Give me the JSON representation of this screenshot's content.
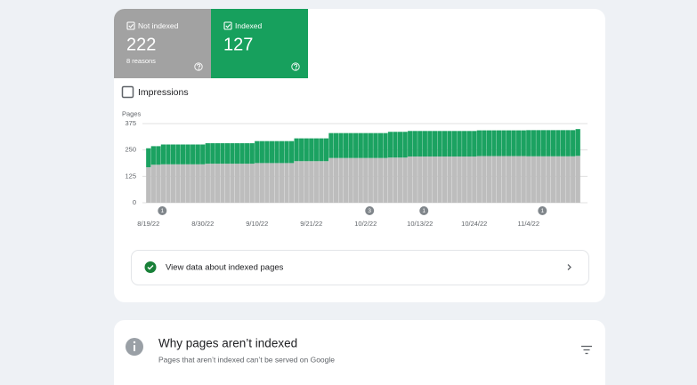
{
  "tiles": {
    "not_indexed": {
      "label": "Not indexed",
      "value": 222,
      "sub": "8 reasons"
    },
    "indexed": {
      "label": "Indexed",
      "value": 127
    }
  },
  "impressions_label": "Impressions",
  "chart_data": {
    "type": "bar",
    "stacked": true,
    "y_label": "Pages",
    "categories": [
      "8/19/22",
      null,
      null,
      null,
      null,
      null,
      null,
      null,
      null,
      null,
      null,
      "8/30/22",
      null,
      null,
      null,
      null,
      null,
      null,
      null,
      null,
      null,
      null,
      "9/10/22",
      null,
      null,
      null,
      null,
      null,
      null,
      null,
      null,
      null,
      null,
      "9/21/22",
      null,
      null,
      null,
      null,
      null,
      null,
      null,
      null,
      null,
      null,
      "10/2/22",
      null,
      null,
      null,
      null,
      null,
      null,
      null,
      null,
      null,
      null,
      "10/13/22",
      null,
      null,
      null,
      null,
      null,
      null,
      null,
      null,
      null,
      null,
      "10/24/22",
      null,
      null,
      null,
      null,
      null,
      null,
      null,
      null,
      null,
      null,
      "11/4/22",
      null,
      null,
      null,
      null,
      null,
      null,
      null,
      null,
      null,
      null
    ],
    "series": [
      {
        "color": "#bdbdbd",
        "values": [
          168,
          180,
          180,
          182,
          182,
          182,
          182,
          182,
          182,
          182,
          182,
          182,
          185,
          185,
          185,
          185,
          185,
          185,
          185,
          185,
          185,
          185,
          188,
          188,
          188,
          188,
          188,
          188,
          188,
          188,
          197,
          197,
          197,
          197,
          197,
          197,
          197,
          212,
          212,
          212,
          212,
          212,
          212,
          212,
          212,
          212,
          212,
          212,
          212,
          214,
          214,
          214,
          214,
          219,
          219,
          219,
          219,
          219,
          219,
          219,
          219,
          219,
          219,
          219,
          219,
          219,
          219,
          221,
          221,
          221,
          221,
          221,
          221,
          221,
          221,
          221,
          221,
          220,
          220,
          220,
          220,
          220,
          220,
          220,
          220,
          220,
          220,
          222
        ]
      },
      {
        "color": "#1ba261",
        "values": [
          90,
          88,
          88,
          94,
          94,
          94,
          94,
          94,
          94,
          94,
          94,
          94,
          97,
          97,
          97,
          97,
          97,
          97,
          97,
          97,
          97,
          97,
          104,
          104,
          104,
          104,
          104,
          104,
          104,
          104,
          108,
          108,
          108,
          108,
          108,
          108,
          108,
          118,
          118,
          118,
          118,
          118,
          118,
          118,
          118,
          118,
          118,
          118,
          118,
          122,
          122,
          122,
          122,
          121,
          121,
          121,
          121,
          121,
          121,
          121,
          121,
          121,
          121,
          121,
          121,
          121,
          121,
          122,
          122,
          122,
          122,
          122,
          122,
          122,
          122,
          122,
          122,
          124,
          124,
          124,
          124,
          124,
          124,
          124,
          124,
          124,
          124,
          127
        ]
      }
    ],
    "ylim": [
      0,
      375
    ],
    "yticks": [
      0,
      125,
      250,
      375
    ],
    "grid": true,
    "annotations": [
      "1",
      "3",
      "1",
      "1"
    ]
  },
  "link": "View data about indexed pages",
  "section": {
    "title": "Why pages aren’t indexed",
    "subtitle": "Pages that aren’t indexed can’t be served on Google"
  }
}
